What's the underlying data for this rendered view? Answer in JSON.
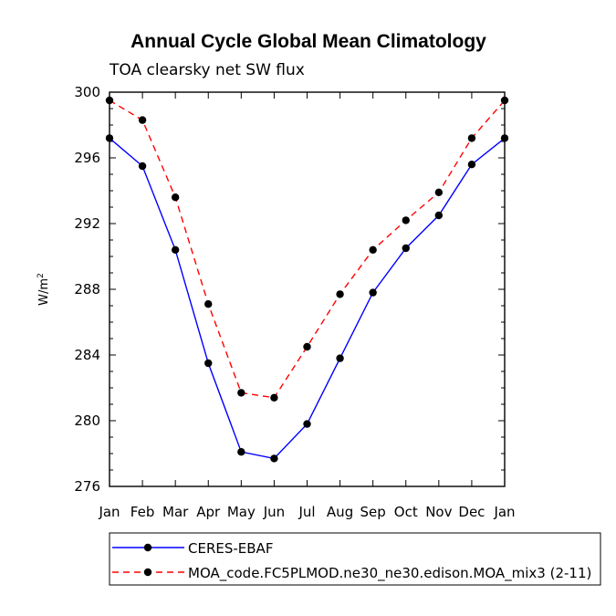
{
  "chart_data": {
    "type": "line",
    "title": "Annual Cycle Global Mean Climatology",
    "subtitle": "TOA clearsky net SW flux",
    "xlabel": "",
    "ylabel": "W/m",
    "ylabel_superscript": "2",
    "categories": [
      "Jan",
      "Feb",
      "Mar",
      "Apr",
      "May",
      "Jun",
      "Jul",
      "Aug",
      "Sep",
      "Oct",
      "Nov",
      "Dec",
      "Jan"
    ],
    "ylim": [
      276,
      300
    ],
    "yticks": [
      276,
      280,
      284,
      288,
      292,
      296,
      300
    ],
    "series": [
      {
        "name": "CERES-EBAF",
        "color": "#0000ff",
        "style": "solid",
        "values": [
          297.2,
          295.5,
          290.4,
          283.5,
          278.1,
          277.7,
          279.8,
          283.8,
          287.8,
          290.5,
          292.5,
          295.6,
          297.2
        ]
      },
      {
        "name": "MOA_code.FC5PLMOD.ne30_ne30.edison.MOA_mix3 (2-11)",
        "color": "#ff0000",
        "style": "dashed",
        "values": [
          299.5,
          298.3,
          293.6,
          287.1,
          281.7,
          281.4,
          284.5,
          287.7,
          290.4,
          292.2,
          293.9,
          297.2,
          299.5
        ]
      }
    ]
  }
}
